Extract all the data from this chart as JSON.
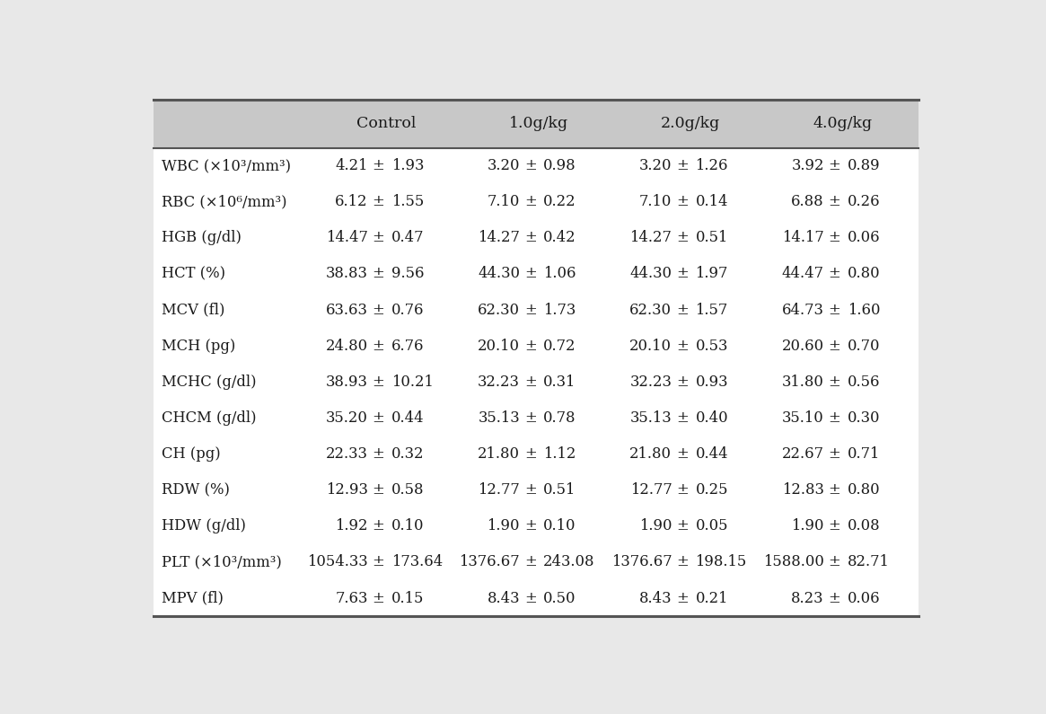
{
  "columns": [
    "",
    "Control",
    "1.0g/kg",
    "2.0g/kg",
    "4.0g/kg"
  ],
  "rows": [
    {
      "label": "WBC (×10³/mm³)",
      "vals": [
        [
          "4.21",
          "1.93"
        ],
        [
          "3.20",
          "0.98"
        ],
        [
          "3.20",
          "1.26"
        ],
        [
          "3.92",
          "0.89"
        ]
      ]
    },
    {
      "label": "RBC (×10⁶/mm³)",
      "vals": [
        [
          "6.12",
          "1.55"
        ],
        [
          "7.10",
          "0.22"
        ],
        [
          "7.10",
          "0.14"
        ],
        [
          "6.88",
          "0.26"
        ]
      ]
    },
    {
      "label": "HGB (g/dl)",
      "vals": [
        [
          "14.47",
          "0.47"
        ],
        [
          "14.27",
          "0.42"
        ],
        [
          "14.27",
          "0.51"
        ],
        [
          "14.17",
          "0.06"
        ]
      ]
    },
    {
      "label": "HCT (%)",
      "vals": [
        [
          "38.83",
          "9.56"
        ],
        [
          "44.30",
          "1.06"
        ],
        [
          "44.30",
          "1.97"
        ],
        [
          "44.47",
          "0.80"
        ]
      ]
    },
    {
      "label": "MCV (fl)",
      "vals": [
        [
          "63.63",
          "0.76"
        ],
        [
          "62.30",
          "1.73"
        ],
        [
          "62.30",
          "1.57"
        ],
        [
          "64.73",
          "1.60"
        ]
      ]
    },
    {
      "label": "MCH (pg)",
      "vals": [
        [
          "24.80",
          "6.76"
        ],
        [
          "20.10",
          "0.72"
        ],
        [
          "20.10",
          "0.53"
        ],
        [
          "20.60",
          "0.70"
        ]
      ]
    },
    {
      "label": "MCHC (g/dl)",
      "vals": [
        [
          "38.93",
          "10.21"
        ],
        [
          "32.23",
          "0.31"
        ],
        [
          "32.23",
          "0.93"
        ],
        [
          "31.80",
          "0.56"
        ]
      ]
    },
    {
      "label": "CHCM (g/dl)",
      "vals": [
        [
          "35.20",
          "0.44"
        ],
        [
          "35.13",
          "0.78"
        ],
        [
          "35.13",
          "0.40"
        ],
        [
          "35.10",
          "0.30"
        ]
      ]
    },
    {
      "label": "CH (pg)",
      "vals": [
        [
          "22.33",
          "0.32"
        ],
        [
          "21.80",
          "1.12"
        ],
        [
          "21.80",
          "0.44"
        ],
        [
          "22.67",
          "0.71"
        ]
      ]
    },
    {
      "label": "RDW (%)",
      "vals": [
        [
          "12.93",
          "0.58"
        ],
        [
          "12.77",
          "0.51"
        ],
        [
          "12.77",
          "0.25"
        ],
        [
          "12.83",
          "0.80"
        ]
      ]
    },
    {
      "label": "HDW (g/dl)",
      "vals": [
        [
          "1.92",
          "0.10"
        ],
        [
          "1.90",
          "0.10"
        ],
        [
          "1.90",
          "0.05"
        ],
        [
          "1.90",
          "0.08"
        ]
      ]
    },
    {
      "label": "PLT (×10³/mm³)",
      "vals": [
        [
          "1054.33",
          "173.64"
        ],
        [
          "1376.67",
          "243.08"
        ],
        [
          "1376.67",
          "198.15"
        ],
        [
          "1588.00",
          "82.71"
        ]
      ]
    },
    {
      "label": "MPV (fl)",
      "vals": [
        [
          "7.63",
          "0.15"
        ],
        [
          "8.43",
          "0.50"
        ],
        [
          "8.43",
          "0.21"
        ],
        [
          "8.23",
          "0.06"
        ]
      ]
    }
  ],
  "header_bg": "#c8c8c8",
  "body_bg": "#ffffff",
  "outer_bg": "#e8e8e8",
  "text_color": "#1a1a1a",
  "line_color": "#555555",
  "font_size": 11.8,
  "header_font_size": 12.5,
  "fig_width": 11.65,
  "fig_height": 7.95,
  "dpi": 100
}
